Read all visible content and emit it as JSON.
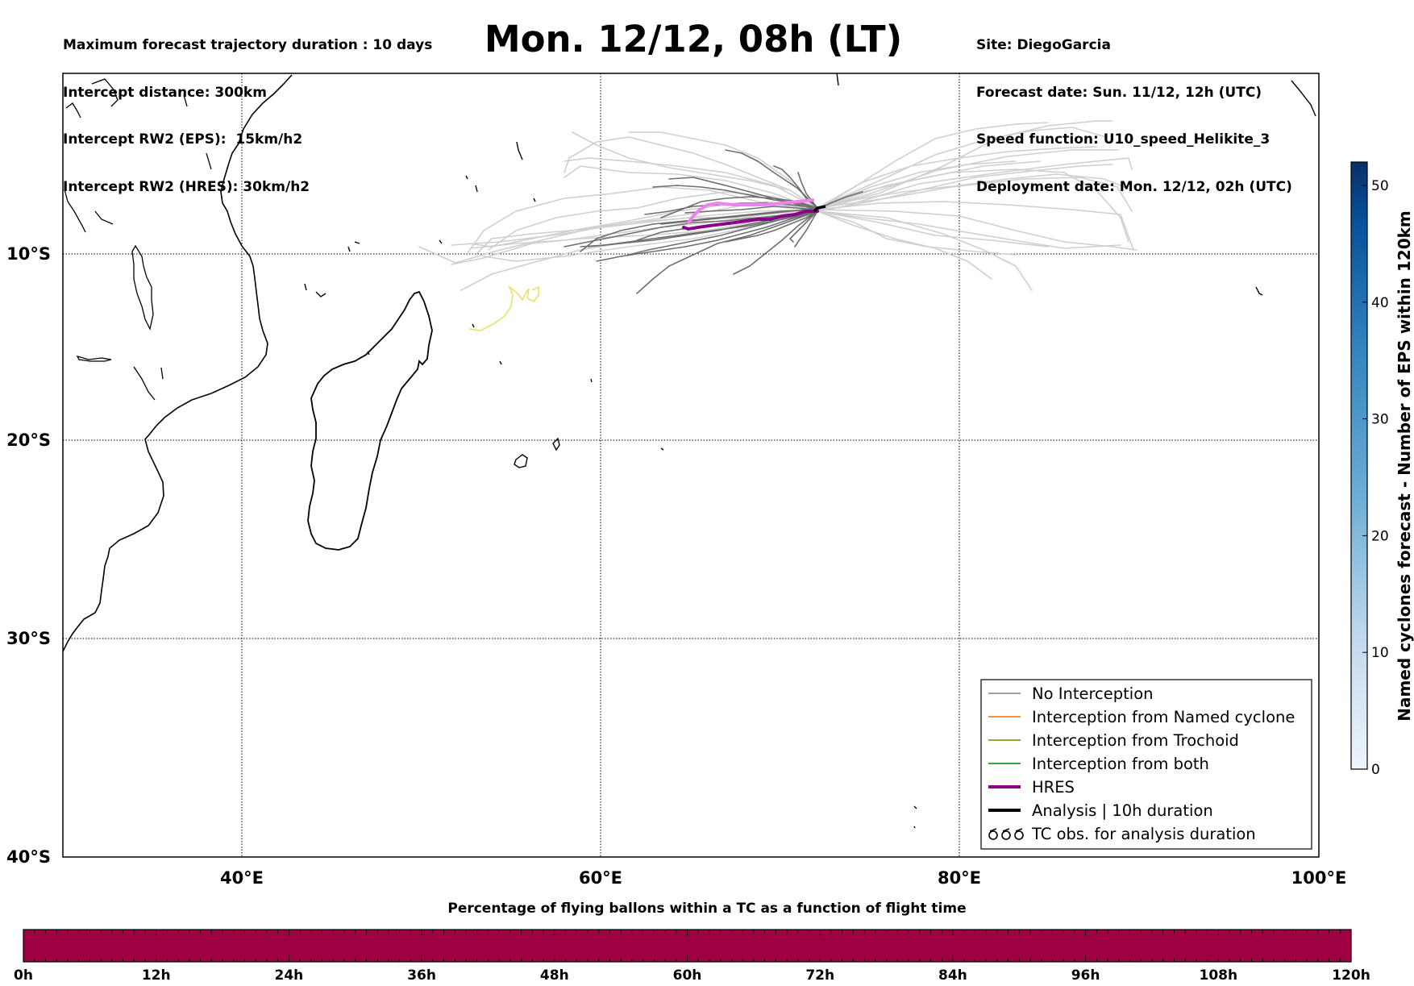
{
  "header": {
    "left_lines": [
      "Maximum forecast trajectory duration : 10 days",
      "Intercept distance: 300km",
      "Intercept RW2 (EPS):  15km/h2",
      "Intercept RW2 (HRES): 30km/h2"
    ],
    "title": "Mon. 12/12, 08h (LT)",
    "right_lines": [
      "Site: DiegoGarcia",
      "Forecast date: Sun. 11/12, 12h (UTC)",
      "Speed function: U10_speed_Helikite_3",
      "Deployment date: Mon. 12/12, 02h (UTC)"
    ]
  },
  "map": {
    "lon_range": [
      30,
      100
    ],
    "lat_range": [
      -40,
      0
    ],
    "lat_ticks": [
      "10°S",
      "20°S",
      "30°S",
      "40°S"
    ],
    "lon_ticks": [
      "40°E",
      "60°E",
      "80°E",
      "100°E"
    ],
    "gridlines": true
  },
  "legend": {
    "items": [
      {
        "label": "No Interception",
        "color": "#808080"
      },
      {
        "label": "Interception from Named cyclone",
        "color": "#ff6a00"
      },
      {
        "label": "Interception from Trochoid",
        "color": "#808000"
      },
      {
        "label": "Interception from both",
        "color": "#008000"
      },
      {
        "label": "HRES",
        "color": "#8b008b"
      },
      {
        "label": "Analysis | 10h duration",
        "color": "#000000"
      },
      {
        "label": "TC obs. for analysis duration",
        "color": "#000000"
      }
    ]
  },
  "right_colorbar": {
    "label": "Named cyclones forecast - Number of EPS within 120km",
    "ticks": [
      "0",
      "10",
      "20",
      "30",
      "40",
      "50"
    ],
    "max": 52,
    "color_low": "#e8f1fb",
    "color_high": "#08306b"
  },
  "bottom_colorbar": {
    "title": "Percentage of flying ballons within a TC as a function of flight time",
    "ticks": [
      "0h",
      "12h",
      "24h",
      "36h",
      "48h",
      "60h",
      "72h",
      "84h",
      "96h",
      "108h",
      "120h"
    ],
    "fill_color": "#9e0142"
  },
  "colors": {
    "eps_light": "#cfcfcf",
    "eps_dark": "#6e6e6e",
    "hres": "#8b008b",
    "hres_alt": "#ee82ee",
    "yellow_track": "#e8e06a"
  }
}
